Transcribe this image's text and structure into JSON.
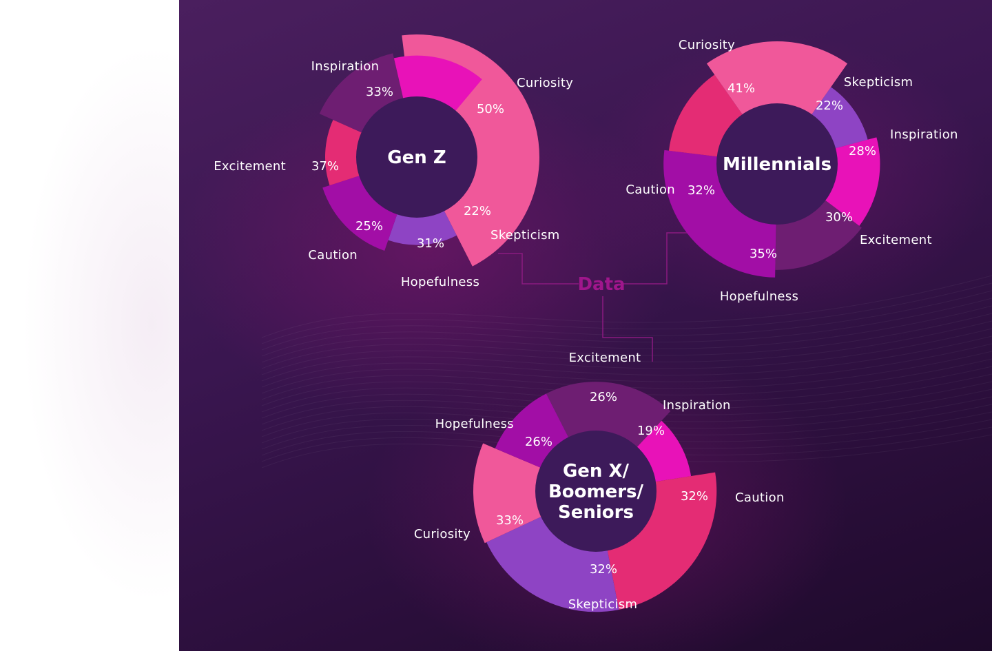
{
  "hub_label": "Data",
  "colors": {
    "Curiosity": "#f0589a",
    "Inspiration": "#e812b8",
    "Skepticism": "#8e44c4",
    "Hopefulness": "#a20ea6",
    "Caution": "#e42c74",
    "Excitement": "#6e1e72",
    "center": "#3d1a5a",
    "connector": "#8a1a80"
  },
  "chart_data": [
    {
      "type": "pie",
      "title": "Gen Z",
      "categories": [
        "Curiosity",
        "Skepticism",
        "Hopefulness",
        "Caution",
        "Excitement",
        "Inspiration"
      ],
      "values": [
        50,
        22,
        31,
        25,
        37,
        33
      ],
      "value_labels": [
        "50%",
        "22%",
        "31%",
        "25%",
        "37%",
        "33%"
      ]
    },
    {
      "type": "pie",
      "title": "Millennials",
      "categories": [
        "Skepticism",
        "Inspiration",
        "Excitement",
        "Hopefulness",
        "Caution",
        "Curiosity"
      ],
      "values": [
        22,
        28,
        30,
        35,
        32,
        41
      ],
      "value_labels": [
        "22%",
        "28%",
        "30%",
        "35%",
        "32%",
        "41%"
      ]
    },
    {
      "type": "pie",
      "title": "Gen X/ Boomers/ Seniors",
      "title_lines": [
        "Gen X/",
        "Boomers/",
        "Seniors"
      ],
      "categories": [
        "Excitement",
        "Inspiration",
        "Caution",
        "Skepticism",
        "Curiosity",
        "Hopefulness"
      ],
      "values": [
        26,
        19,
        32,
        32,
        33,
        26
      ],
      "value_labels": [
        "26%",
        "19%",
        "32%",
        "32%",
        "33%",
        "26%"
      ]
    }
  ]
}
